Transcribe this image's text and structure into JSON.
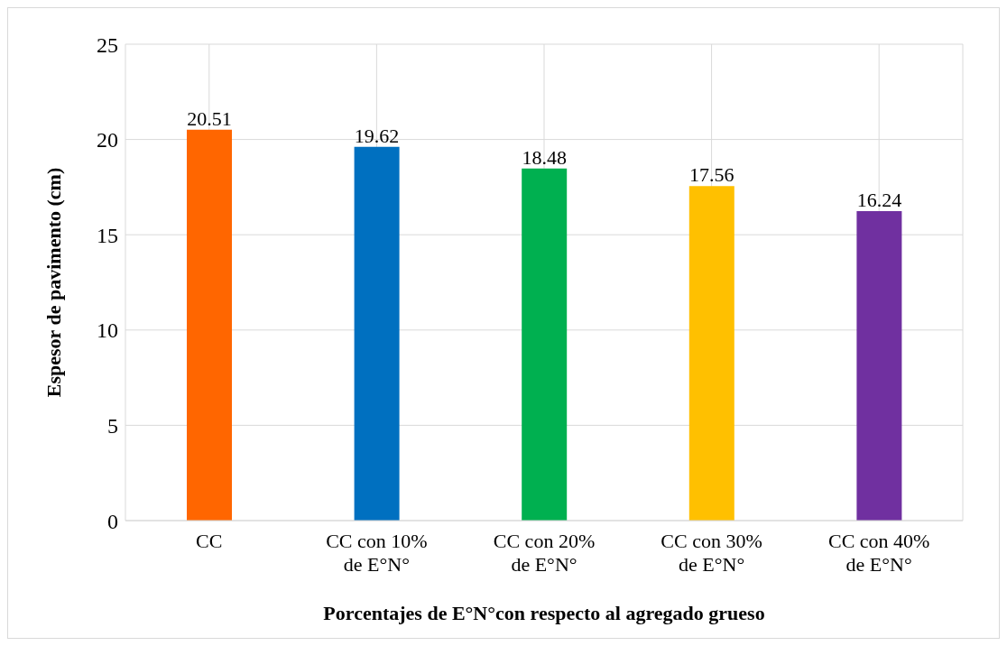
{
  "chart_data": {
    "type": "bar",
    "xlabel": "Porcentajes de E°N°con respecto al agregado grueso",
    "ylabel": "Espesor de pavimento (cm)",
    "categories": [
      "CC",
      "CC con 10% de E°N°",
      "CC con 20% de E°N°",
      "CC con 30% de E°N°",
      "CC con 40% de E°N°"
    ],
    "values": [
      20.51,
      19.62,
      18.48,
      17.56,
      16.24
    ],
    "colors": [
      "#ff6600",
      "#0070c0",
      "#00b050",
      "#ffc000",
      "#7030a0"
    ],
    "ylim": [
      0,
      25
    ],
    "yticks": [
      0,
      5,
      10,
      15,
      20,
      25
    ],
    "grid": true,
    "data_labels": true,
    "legend": false
  }
}
